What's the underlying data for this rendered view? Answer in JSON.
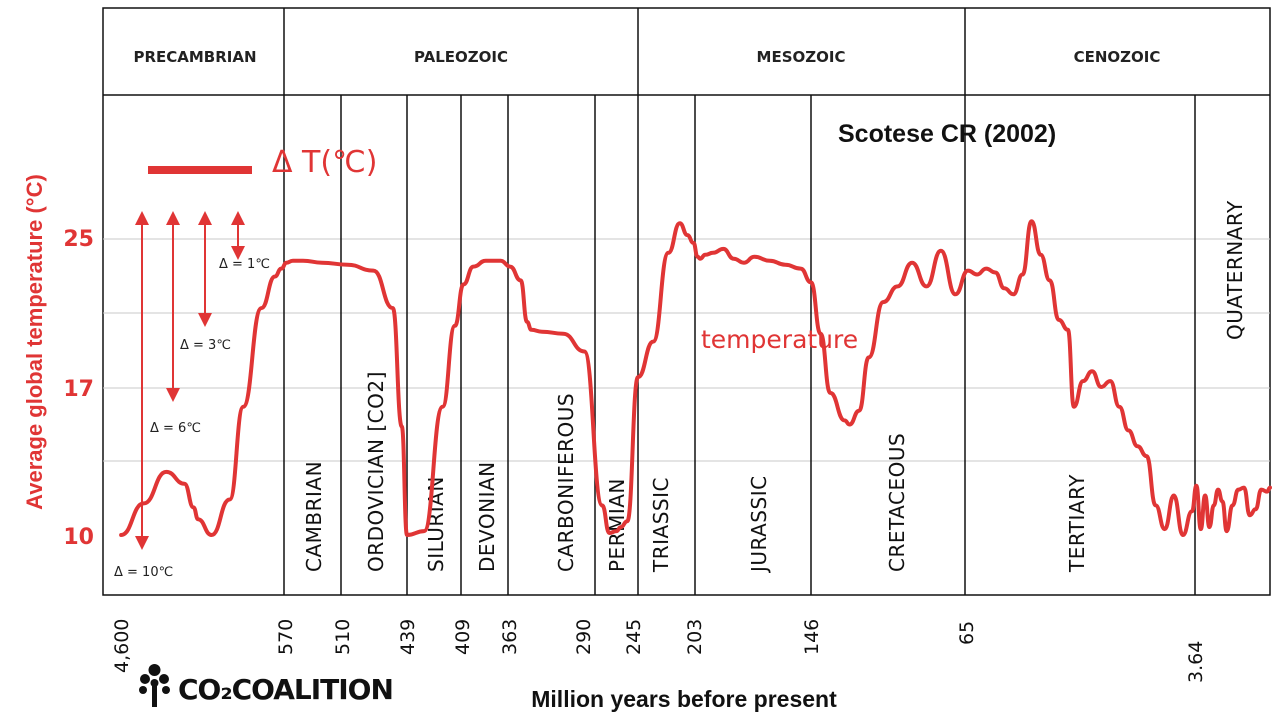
{
  "chart_data": {
    "type": "line",
    "title": "",
    "source": "Scotese CR (2002)",
    "xlabel": "Million years before present",
    "ylabel": "Average global temperature (°C)",
    "ytick_labels": [
      "25",
      "17",
      "10"
    ],
    "x_tick_labels": [
      "4,600",
      "570",
      "510",
      "439",
      "409",
      "363",
      "290",
      "245",
      "203",
      "146",
      "65",
      "3.64"
    ],
    "eras": [
      "PRECAMBRIAN",
      "PALEOZOIC",
      "MESOZOIC",
      "CENOZOIC"
    ],
    "periods": [
      "CAMBRIAN",
      "ORDOVICIAN [CO2]",
      "SILURIAN",
      "DEVONIAN",
      "CARBONIFEROUS",
      "PERMIAN",
      "TRIASSIC",
      "JURASSIC",
      "CRETACEOUS",
      "TERTIARY",
      "QUATERNARY"
    ],
    "legend_label": "Δ T(℃)",
    "series_label": "temperature",
    "delta_labels": [
      "Δ = 1℃",
      "Δ = 3℃",
      "Δ = 6℃",
      "Δ = 10℃"
    ],
    "series": [
      {
        "name": "temperature",
        "color": "#e03535",
        "note": "x = segment index along the (non-linear) time axis; y = temperature in °C",
        "x": [
          0.2,
          0.45,
          0.7,
          0.9,
          1.0,
          1.05,
          1.2,
          1.4,
          1.55,
          1.75,
          1.9,
          1.97,
          2.02,
          2.07,
          2.15,
          2.3,
          2.5,
          2.7,
          2.85,
          2.92,
          2.96,
          3.1,
          3.25,
          3.35,
          3.42,
          3.5,
          3.6,
          3.72,
          3.8,
          3.9,
          3.96,
          4.0,
          4.1,
          4.3,
          4.5,
          4.7,
          4.8,
          4.9,
          4.96,
          5.05,
          5.2,
          5.4,
          5.6,
          5.75,
          5.85,
          5.93,
          6.0,
          6.05,
          6.15,
          6.3,
          6.5,
          6.7,
          6.9,
          7.1,
          7.4,
          7.7,
          8.0,
          8.2,
          8.4,
          8.6,
          8.9,
          9.0,
          9.2,
          9.4,
          9.7,
          10.0,
          10.3,
          10.6,
          10.9,
          11.2,
          11.5,
          11.8,
          12.1,
          12.4,
          12.7,
          13.0,
          13.3,
          13.6,
          13.9,
          14.2,
          14.5,
          14.8,
          15.0,
          15.3,
          15.6,
          15.9,
          16.2,
          16.5,
          16.8,
          17.1,
          17.4,
          17.7,
          18.0,
          18.3,
          18.6,
          18.9,
          19.1,
          19.4,
          19.7,
          20.0,
          20.3,
          20.6,
          20.9,
          21.2,
          21.6,
          22.0,
          22.4,
          22.8,
          23.2,
          23.6,
          24.0,
          24.2
        ],
        "y": [
          10.0,
          11.6,
          13.2,
          12.6,
          11.4,
          10.8,
          10.0,
          11.8,
          16.5,
          21.5,
          23.1,
          23.5,
          23.8,
          23.9,
          23.9,
          23.8,
          23.7,
          23.4,
          21.5,
          15.5,
          10.0,
          10.2,
          16.5,
          20.6,
          22.7,
          23.6,
          23.9,
          23.9,
          23.6,
          22.9,
          20.8,
          20.4,
          20.3,
          20.2,
          19.3,
          11.5,
          10.1,
          10.2,
          10.4,
          10.7,
          18.0,
          19.8,
          24.3,
          25.8,
          25.2,
          24.8,
          24.1,
          24.0,
          24.2,
          24.3,
          24.5,
          24.0,
          23.8,
          24.1,
          23.9,
          23.7,
          23.5,
          22.8,
          20.2,
          17.2,
          15.8,
          15.6,
          16.3,
          19.0,
          21.8,
          22.6,
          23.8,
          22.6,
          24.4,
          22.2,
          23.4,
          23.2,
          23.5,
          23.3,
          22.5,
          22.2,
          23.2,
          25.9,
          24.2,
          22.9,
          20.9,
          20.4,
          16.5,
          17.8,
          18.3,
          17.5,
          17.8,
          16.5,
          15.3,
          14.5,
          14.0,
          11.5,
          10.3,
          12.0,
          10.0,
          11.2,
          12.5,
          10.3,
          12.0,
          10.4,
          11.5,
          12.3,
          11.7,
          10.2,
          11.5,
          12.3,
          12.4,
          11.0,
          11.3,
          12.3,
          12.2,
          12.4
        ]
      }
    ],
    "ylim": [
      7,
      32
    ],
    "grid": true
  },
  "logo": {
    "text": "CO₂COALITION",
    "icon": "tree-icon"
  },
  "colors": {
    "accent": "#e03535",
    "line": "#e03535",
    "ink": "#111111",
    "grid": "#c8c8c8"
  }
}
